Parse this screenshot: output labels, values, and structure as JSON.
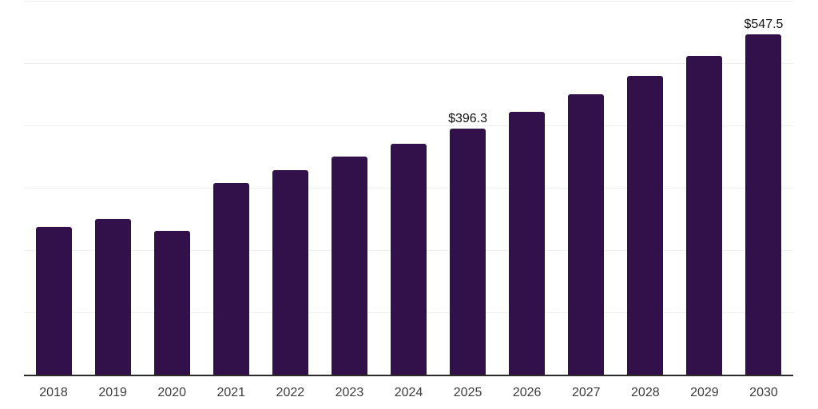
{
  "chart": {
    "background_color": "#ffffff",
    "bar_color": "#32114A",
    "axis_line_color": "#2b2b2b",
    "gridline_color": "#efefef",
    "tick_label_color": "#3c3c3c",
    "data_label_color": "#111111"
  },
  "chart_data": {
    "type": "bar",
    "title": "",
    "xlabel": "",
    "ylabel": "",
    "categories": [
      "2018",
      "2019",
      "2020",
      "2021",
      "2022",
      "2023",
      "2024",
      "2025",
      "2026",
      "2027",
      "2028",
      "2029",
      "2030"
    ],
    "values": [
      238.9,
      251.7,
      232.6,
      309.2,
      329.7,
      351.4,
      371.8,
      396.3,
      422.7,
      450.9,
      481.0,
      513.1,
      547.5
    ],
    "data_labels": [
      "",
      "",
      "",
      "",
      "",
      "",
      "",
      "$396.3",
      "",
      "",
      "",
      "",
      "$547.5"
    ],
    "ylim": [
      0,
      600
    ],
    "grid_interval": 100,
    "grid": true,
    "legend_position": "none",
    "y_axis_labels_visible": false
  }
}
